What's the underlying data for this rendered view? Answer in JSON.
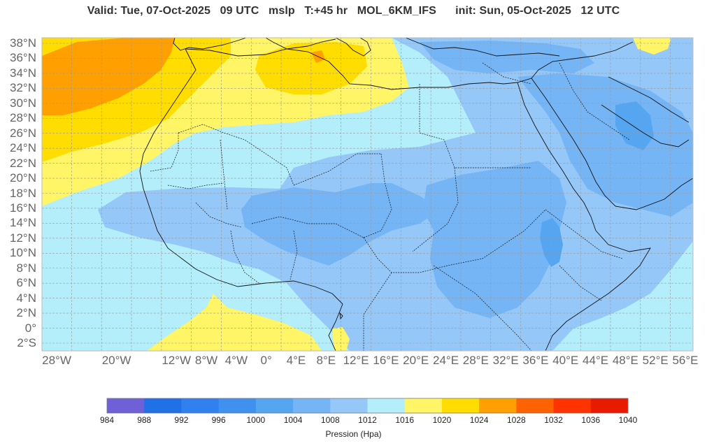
{
  "header": {
    "title": "Valid: Tue, 07-Oct-2025   09 UTC   mslp   T:+45 hr   MOL_6KM_IFS      init: Sun, 05-Oct-2025   12 UTC"
  },
  "map": {
    "lat_labels": [
      "38°N",
      "36°N",
      "34°N",
      "32°N",
      "30°N",
      "28°N",
      "26°N",
      "24°N",
      "22°N",
      "20°N",
      "18°N",
      "16°N",
      "14°N",
      "12°N",
      "10°N",
      "8°N",
      "6°N",
      "4°N",
      "2°N",
      "0°",
      "2°S"
    ],
    "lon_labels": [
      "28°W",
      "20°W",
      "12°W",
      "8°W",
      "4°W",
      "0°",
      "4°E",
      "8°E",
      "12°E",
      "16°E",
      "20°E",
      "24°E",
      "28°E",
      "32°E",
      "36°E",
      "40°E",
      "44°E",
      "48°E",
      "52°E",
      "56°E"
    ]
  },
  "colorbar": {
    "title": "Pression (Hpa)",
    "ticks": [
      "984",
      "988",
      "992",
      "996",
      "1000",
      "1004",
      "1008",
      "1012",
      "1016",
      "1020",
      "1024",
      "1028",
      "1032",
      "1036",
      "1040"
    ],
    "colors": [
      "#7060d8",
      "#2070e8",
      "#3080f0",
      "#4090f0",
      "#55a5f0",
      "#75b5f5",
      "#95c8f8",
      "#b3eefa",
      "#fff566",
      "#ffdd00",
      "#ff9f00",
      "#ff6200",
      "#ff3300",
      "#e81a00"
    ]
  }
}
